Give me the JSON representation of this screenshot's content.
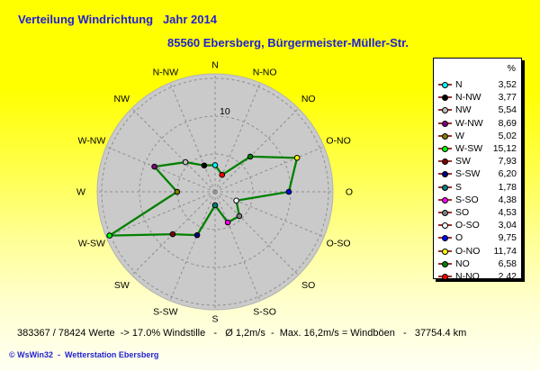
{
  "header": {
    "title": "Verteilung Windrichtung   Jahr 2014",
    "subtitle": "85560 Ebersberg, Bürgermeister-Müller-Str."
  },
  "colors": {
    "title_text": "#2222d0",
    "background_top": "#ffff00",
    "background_bottom": "#fffff3",
    "disc_fill": "#cacaca",
    "disc_edge": "#b2b2b2",
    "grid_dash": "#8e8e8e",
    "polygon_line": "#008000",
    "legend_marker_line": "#993333",
    "legend_background": "#ffffff"
  },
  "chart_data": {
    "type": "line",
    "polar": true,
    "title": "Verteilung Windrichtung   Jahr 2014",
    "subtitle": "85560 Ebersberg, Bürgermeister-Müller-Str.",
    "unit": "%",
    "rmax": 15.6,
    "radial_gridlines": [
      5,
      10,
      15
    ],
    "radial_tick_label": "10",
    "grid": true,
    "legend_position": "right",
    "categories": [
      "N",
      "N-NW",
      "NW",
      "W-NW",
      "W",
      "W-SW",
      "SW",
      "S-SW",
      "S",
      "S-SO",
      "SO",
      "O-SO",
      "O",
      "O-NO",
      "NO",
      "N-NO"
    ],
    "angles_deg": [
      0,
      337.5,
      315,
      292.5,
      270,
      247.5,
      225,
      202.5,
      180,
      157.5,
      135,
      112.5,
      90,
      67.5,
      45,
      22.5
    ],
    "values": [
      3.52,
      3.77,
      5.54,
      8.69,
      5.02,
      15.12,
      7.93,
      6.2,
      1.78,
      4.38,
      4.53,
      3.04,
      9.75,
      11.74,
      6.58,
      2.42
    ],
    "values_display": [
      "3,52",
      "3,77",
      "5,54",
      "8,69",
      "5,02",
      "15,12",
      "7,93",
      "6,20",
      "1,78",
      "4,38",
      "4,53",
      "3,04",
      "9,75",
      "11,74",
      "6,58",
      "2,42"
    ],
    "point_colors": [
      "#00FFFF",
      "#000000",
      "#C0C0C0",
      "#800080",
      "#808000",
      "#00FF00",
      "#800000",
      "#000080",
      "#008080",
      "#FF00FF",
      "#808080",
      "#FFFFFF",
      "#0000FF",
      "#FFFF00",
      "#008000",
      "#FF0000"
    ]
  },
  "legend": {
    "header": "%"
  },
  "footer": {
    "stats": "383367 / 78424 Werte  -> 17.0% Windstille   -   Ø 1,2m/s  -  Max. 16,2m/s = Windböen   -   37754.4 km",
    "copyright": "© WsWin32  -  Wetterstation Ebersberg"
  }
}
